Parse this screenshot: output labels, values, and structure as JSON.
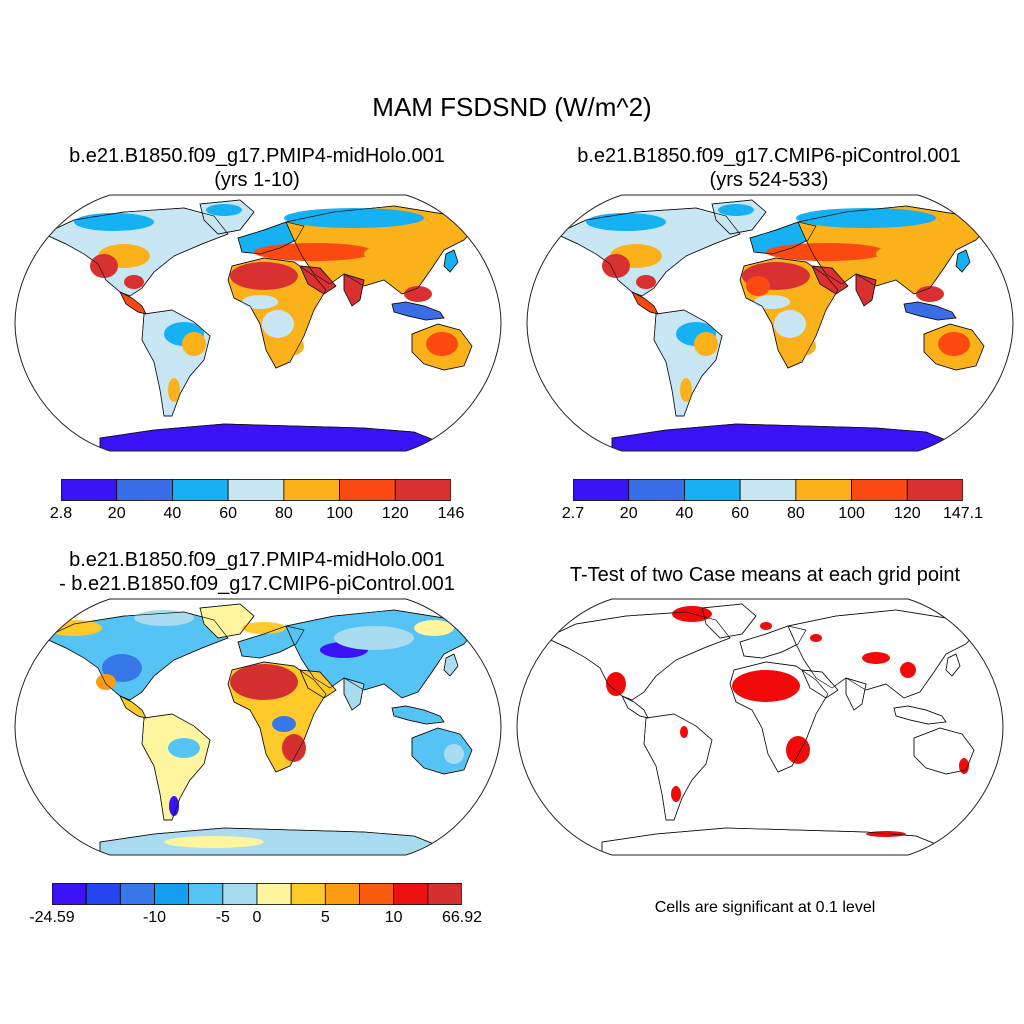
{
  "main_title": "MAM FSDSND (W/m^2)",
  "panels": {
    "top_left": {
      "title_line1": "b.e21.B1850.f09_g17.PMIP4-midHolo.001",
      "title_line2": "(yrs 1-10)",
      "colorbar": {
        "colors": [
          "#3b12f5",
          "#3a6ee6",
          "#15b1f2",
          "#c9e6f5",
          "#fbb21a",
          "#fb4a11",
          "#d93131"
        ],
        "labels": [
          "2.8",
          "20",
          "40",
          "60",
          "80",
          "100",
          "120",
          "146"
        ]
      }
    },
    "top_right": {
      "title_line1": "b.e21.B1850.f09_g17.CMIP6-piControl.001",
      "title_line2": "(yrs 524-533)",
      "colorbar": {
        "colors": [
          "#3b12f5",
          "#3a6ee6",
          "#15b1f2",
          "#c9e6f5",
          "#fbb21a",
          "#fb4a11",
          "#d93131"
        ],
        "labels": [
          "2.7",
          "20",
          "40",
          "60",
          "80",
          "100",
          "120",
          "147.1"
        ]
      }
    },
    "bottom_left": {
      "title_line1": "b.e21.B1850.f09_g17.PMIP4-midHolo.001",
      "title_line2": "- b.e21.B1850.f09_g17.CMIP6-piControl.001",
      "colorbar": {
        "colors": [
          "#3a12f5",
          "#2445f0",
          "#3777e8",
          "#149ff0",
          "#55c3f3",
          "#a9dcf0",
          "#fff59e",
          "#fdca2a",
          "#fb9c13",
          "#fb5a11",
          "#ee1111",
          "#d43030"
        ],
        "labels": [
          "-24.59",
          "-10",
          "-5",
          "0",
          "5",
          "10",
          "66.92"
        ],
        "label_bounds": [
          0,
          3,
          5,
          6,
          8,
          10,
          12
        ]
      }
    },
    "bottom_right": {
      "title_line1": "T-Test of two Case means at each grid point",
      "note": "Cells are significant at 0.1 level",
      "significant_color": "#f20a0a"
    }
  }
}
